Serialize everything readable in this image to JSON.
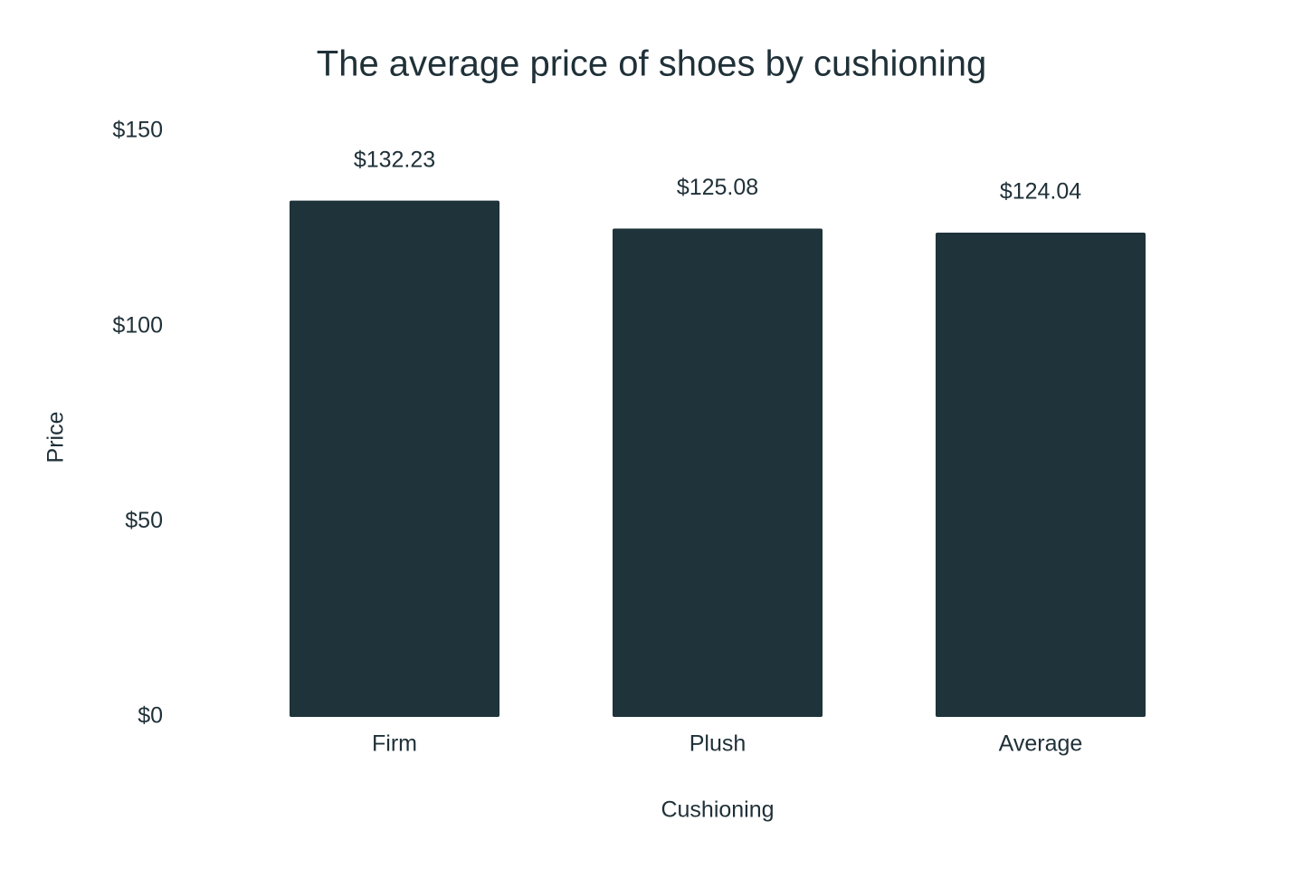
{
  "chart_data": {
    "type": "bar",
    "title": "The average price of shoes by cushioning",
    "x_label": "Cushioning",
    "y_label": "Price",
    "categories": [
      "Firm",
      "Plush",
      "Average"
    ],
    "values": [
      132.23,
      125.08,
      124.04
    ],
    "value_labels": [
      "$132.23",
      "$125.08",
      "$124.04"
    ],
    "color": "#1e333a",
    "ylim": [
      0,
      150
    ],
    "yticks": [
      {
        "value": 0,
        "label": "$0"
      },
      {
        "value": 50,
        "label": "$50"
      },
      {
        "value": 100,
        "label": "$100"
      },
      {
        "value": 150,
        "label": "$150"
      }
    ],
    "grid": false
  }
}
